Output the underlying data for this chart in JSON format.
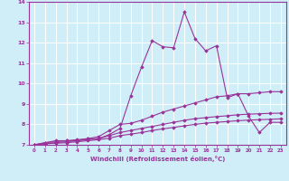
{
  "xlabel": "Windchill (Refroidissement éolien,°C)",
  "xlim": [
    -0.5,
    23.5
  ],
  "ylim": [
    7,
    14
  ],
  "yticks": [
    7,
    8,
    9,
    10,
    11,
    12,
    13,
    14
  ],
  "xticks": [
    0,
    1,
    2,
    3,
    4,
    5,
    6,
    7,
    8,
    9,
    10,
    11,
    12,
    13,
    14,
    15,
    16,
    17,
    18,
    19,
    20,
    21,
    22,
    23
  ],
  "background_color": "#d0eef8",
  "line_color": "#993399",
  "grid_color": "#ffffff",
  "lines": [
    [
      7.0,
      7.1,
      7.2,
      7.2,
      7.2,
      7.3,
      7.3,
      7.5,
      7.8,
      9.4,
      10.8,
      12.1,
      11.8,
      11.75,
      13.5,
      12.2,
      11.6,
      11.85,
      9.3,
      9.5,
      8.4,
      7.6,
      8.1,
      8.1
    ],
    [
      7.0,
      7.1,
      7.15,
      7.2,
      7.25,
      7.3,
      7.4,
      7.7,
      8.0,
      8.05,
      8.2,
      8.4,
      8.6,
      8.75,
      8.9,
      9.05,
      9.2,
      9.35,
      9.4,
      9.5,
      9.5,
      9.55,
      9.6,
      9.6
    ],
    [
      7.0,
      7.05,
      7.1,
      7.15,
      7.2,
      7.25,
      7.3,
      7.45,
      7.6,
      7.7,
      7.8,
      7.9,
      8.0,
      8.1,
      8.2,
      8.28,
      8.33,
      8.38,
      8.42,
      8.47,
      8.5,
      8.52,
      8.54,
      8.55
    ],
    [
      7.0,
      7.05,
      7.08,
      7.1,
      7.15,
      7.2,
      7.25,
      7.32,
      7.45,
      7.52,
      7.6,
      7.7,
      7.78,
      7.85,
      7.93,
      8.0,
      8.06,
      8.1,
      8.14,
      8.18,
      8.21,
      8.23,
      8.25,
      8.27
    ]
  ]
}
